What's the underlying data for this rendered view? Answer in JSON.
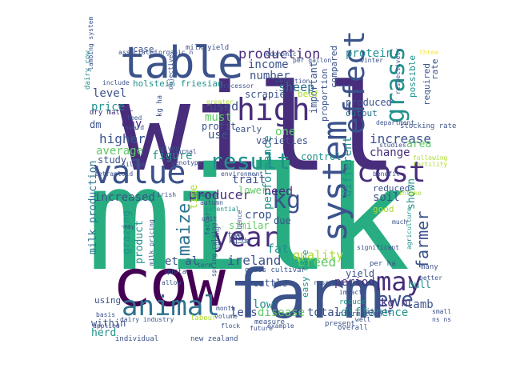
{
  "wordcloud": {
    "colors": {
      "dark_purple": "#440154",
      "indigo": "#472d7b",
      "slate_blue": "#3b528b",
      "steel_blue": "#2c728e",
      "teal": "#21918c",
      "green": "#28ae80",
      "sea_green": "#5ec962",
      "lime": "#addc30",
      "yellow": "#fde725",
      "mid_green": "#27ad81"
    },
    "words": [
      {
        "text": "will",
        "color": "indigo"
      },
      {
        "text": "milk",
        "color": "mid_green"
      },
      {
        "text": "farm",
        "color": "slate_blue"
      },
      {
        "text": "cow",
        "color": "dark_purple"
      },
      {
        "text": "table",
        "color": "slate_blue"
      },
      {
        "text": "value",
        "color": "slate_blue"
      },
      {
        "text": "animal",
        "color": "steel_blue"
      },
      {
        "text": "system",
        "color": "slate_blue"
      },
      {
        "text": "effect",
        "color": "slate_blue"
      },
      {
        "text": "grass",
        "color": "teal"
      },
      {
        "text": "high",
        "color": "indigo"
      },
      {
        "text": "result",
        "color": "teal"
      },
      {
        "text": "cost",
        "color": "indigo"
      },
      {
        "text": "year",
        "color": "indigo"
      },
      {
        "text": "may",
        "color": "indigo"
      },
      {
        "text": "ewe",
        "color": "slate_blue"
      },
      {
        "text": "kg",
        "color": "slate_blue"
      },
      {
        "text": "farmer",
        "color": "slate_blue"
      },
      {
        "text": "maize",
        "color": "steel_blue"
      },
      {
        "text": "production",
        "color": "indigo"
      },
      {
        "text": "increase",
        "color": "slate_blue"
      },
      {
        "text": "sheep",
        "color": "steel_blue"
      },
      {
        "text": "higher",
        "color": "slate_blue"
      },
      {
        "text": "average",
        "color": "sea_green"
      },
      {
        "text": "breed",
        "color": "sea_green"
      },
      {
        "text": "price",
        "color": "teal"
      },
      {
        "text": "level",
        "color": "slate_blue"
      },
      {
        "text": "used",
        "color": "slate_blue"
      },
      {
        "text": "must",
        "color": "sea_green"
      },
      {
        "text": "income",
        "color": "slate_blue"
      },
      {
        "text": "number",
        "color": "slate_blue"
      },
      {
        "text": "holstein friesian",
        "color": "teal"
      },
      {
        "text": "protein",
        "color": "teal"
      },
      {
        "text": "important",
        "color": "slate_blue"
      },
      {
        "text": "proportion",
        "color": "slate_blue"
      },
      {
        "text": "compared",
        "color": "slate_blue"
      },
      {
        "text": "produced",
        "color": "slate_blue"
      },
      {
        "text": "output",
        "color": "steel_blue"
      },
      {
        "text": "change",
        "color": "indigo"
      },
      {
        "text": "area",
        "color": "sea_green"
      },
      {
        "text": "possible",
        "color": "teal"
      },
      {
        "text": "required",
        "color": "slate_blue"
      },
      {
        "text": "rate",
        "color": "slate_blue"
      },
      {
        "text": "figure",
        "color": "teal"
      },
      {
        "text": "producer",
        "color": "indigo"
      },
      {
        "text": "increased",
        "color": "slate_blue"
      },
      {
        "text": "trait",
        "color": "slate_blue"
      },
      {
        "text": "need",
        "color": "indigo"
      },
      {
        "text": "soil",
        "color": "slate_blue"
      },
      {
        "text": "different",
        "color": "teal"
      },
      {
        "text": "reduced",
        "color": "slate_blue"
      },
      {
        "text": "performance",
        "color": "teal"
      },
      {
        "text": "crop",
        "color": "slate_blue"
      },
      {
        "text": "shown",
        "color": "teal"
      },
      {
        "text": "milk production",
        "color": "steel_blue"
      },
      {
        "text": "grazing",
        "color": "teal"
      },
      {
        "text": "product",
        "color": "teal"
      },
      {
        "text": "et al",
        "color": "slate_blue"
      },
      {
        "text": "ireland",
        "color": "slate_blue"
      },
      {
        "text": "fat",
        "color": "teal"
      },
      {
        "text": "quality",
        "color": "lime"
      },
      {
        "text": "period",
        "color": "indigo"
      },
      {
        "text": "kg n",
        "color": "indigo"
      },
      {
        "text": "lamb",
        "color": "slate_blue"
      },
      {
        "text": "low",
        "color": "teal"
      },
      {
        "text": "less",
        "color": "slate_blue"
      },
      {
        "text": "disease",
        "color": "sea_green"
      },
      {
        "text": "total",
        "color": "slate_blue"
      },
      {
        "text": "difference",
        "color": "teal"
      },
      {
        "text": "within",
        "color": "slate_blue"
      },
      {
        "text": "herd",
        "color": "teal"
      },
      {
        "text": "day",
        "color": "indigo"
      },
      {
        "text": "dm",
        "color": "slate_blue"
      },
      {
        "text": "profit",
        "color": "slate_blue"
      },
      {
        "text": "use",
        "color": "slate_blue"
      },
      {
        "text": "time",
        "color": "lime"
      },
      {
        "text": "one",
        "color": "sea_green"
      },
      {
        "text": "varieties",
        "color": "slate_blue"
      },
      {
        "text": "early",
        "color": "slate_blue"
      },
      {
        "text": "control",
        "color": "teal"
      },
      {
        "text": "study",
        "color": "slate_blue"
      },
      {
        "text": "lower",
        "color": "sea_green"
      },
      {
        "text": "similar",
        "color": "sea_green"
      },
      {
        "text": "due",
        "color": "slate_blue"
      },
      {
        "text": "two",
        "color": "slate_blue"
      },
      {
        "text": "cattle",
        "color": "slate_blue"
      },
      {
        "text": "yield",
        "color": "slate_blue"
      },
      {
        "text": "easy care",
        "color": "teal"
      },
      {
        "text": "scrapie",
        "color": "slate_blue"
      },
      {
        "text": "beef",
        "color": "lime"
      },
      {
        "text": "case",
        "color": "slate_blue"
      },
      {
        "text": "milk yield",
        "color": "slate_blue"
      },
      {
        "text": "dairy cow",
        "color": "teal"
      },
      {
        "text": "bull",
        "color": "teal"
      },
      {
        "text": "using",
        "color": "slate_blue"
      },
      {
        "text": "good",
        "color": "lime"
      },
      {
        "text": "per ha",
        "color": "slate_blue"
      },
      {
        "text": "quota",
        "color": "slate_blue"
      },
      {
        "text": "nitrate",
        "color": "slate_blue"
      },
      {
        "text": "reduce",
        "color": "teal"
      },
      {
        "text": "grass cultivar",
        "color": "slate_blue"
      },
      {
        "text": "many",
        "color": "slate_blue"
      },
      {
        "text": "dry matter",
        "color": "indigo"
      },
      {
        "text": "kg ha",
        "color": "slate_blue"
      },
      {
        "text": "kg dm",
        "color": "slate_blue"
      },
      {
        "text": "new zealand",
        "color": "slate_blue"
      },
      {
        "text": "individual",
        "color": "slate_blue"
      },
      {
        "text": "labour",
        "color": "lime"
      },
      {
        "text": "information",
        "color": "slate_blue"
      },
      {
        "text": "present",
        "color": "slate_blue"
      },
      {
        "text": "overall",
        "color": "slate_blue"
      },
      {
        "text": "applied",
        "color": "slate_blue"
      },
      {
        "text": "dairy industry",
        "color": "slate_blue"
      },
      {
        "text": "volume",
        "color": "slate_blue"
      },
      {
        "text": "measure",
        "color": "slate_blue"
      },
      {
        "text": "month",
        "color": "slate_blue"
      },
      {
        "text": "flock",
        "color": "slate_blue"
      },
      {
        "text": "future",
        "color": "slate_blue"
      },
      {
        "text": "environment",
        "color": "slate_blue"
      },
      {
        "text": "potential",
        "color": "teal"
      },
      {
        "text": "autumn",
        "color": "slate_blue"
      },
      {
        "text": "winter",
        "color": "slate_blue"
      },
      {
        "text": "benefit",
        "color": "slate_blue"
      },
      {
        "text": "intake",
        "color": "lime"
      },
      {
        "text": "agriculture",
        "color": "teal"
      },
      {
        "text": "studies",
        "color": "slate_blue"
      },
      {
        "text": "stocking rate",
        "color": "slate_blue"
      },
      {
        "text": "following",
        "color": "lime"
      },
      {
        "text": "fertility",
        "color": "lime"
      },
      {
        "text": "journal",
        "color": "slate_blue"
      },
      {
        "text": "given",
        "color": "slate_blue"
      },
      {
        "text": "genotype",
        "color": "slate_blue"
      },
      {
        "text": "greater",
        "color": "lime"
      },
      {
        "text": "selection",
        "color": "slate_blue"
      },
      {
        "text": "processor",
        "color": "slate_blue"
      },
      {
        "text": "objective",
        "color": "slate_blue"
      },
      {
        "text": "organic n",
        "color": "slate_blue"
      },
      {
        "text": "associated",
        "color": "slate_blue"
      },
      {
        "text": "include",
        "color": "slate_blue"
      },
      {
        "text": "silage",
        "color": "slate_blue"
      },
      {
        "text": "sward",
        "color": "slate_blue"
      },
      {
        "text": "feed",
        "color": "slate_blue"
      },
      {
        "text": "irish",
        "color": "slate_blue"
      },
      {
        "text": "mater",
        "color": "slate_blue"
      },
      {
        "text": "unit",
        "color": "slate_blue"
      },
      {
        "text": "factor",
        "color": "slate_blue"
      },
      {
        "text": "spring",
        "color": "slate_blue"
      },
      {
        "text": "term",
        "color": "slate_blue"
      },
      {
        "text": "influence",
        "color": "slate_blue"
      },
      {
        "text": "impact",
        "color": "slate_blue"
      },
      {
        "text": "well",
        "color": "slate_blue"
      },
      {
        "text": "better",
        "color": "slate_blue"
      },
      {
        "text": "much",
        "color": "slate_blue"
      },
      {
        "text": "per kg",
        "color": "slate_blue"
      },
      {
        "text": "three",
        "color": "yellow"
      },
      {
        "text": "per gallon",
        "color": "slate_blue"
      },
      {
        "text": "department",
        "color": "slate_blue"
      },
      {
        "text": "respectively",
        "color": "slate_blue"
      },
      {
        "text": "ns ns",
        "color": "slate_blue"
      },
      {
        "text": "small",
        "color": "slate_blue"
      },
      {
        "text": "milk pricing",
        "color": "slate_blue"
      },
      {
        "text": "spring calving",
        "color": "slate_blue"
      },
      {
        "text": "significant",
        "color": "slate_blue"
      },
      {
        "text": "allow",
        "color": "slate_blue"
      },
      {
        "text": "example",
        "color": "slate_blue"
      },
      {
        "text": "tetraploid",
        "color": "slate_blue"
      },
      {
        "text": "lambing system",
        "color": "slate_blue"
      },
      {
        "text": "economic",
        "color": "slate_blue"
      },
      {
        "text": "basis",
        "color": "slate_blue"
      },
      {
        "text": "research",
        "color": "slate_blue"
      },
      {
        "text": "may",
        "color": "slate_blue"
      }
    ]
  }
}
